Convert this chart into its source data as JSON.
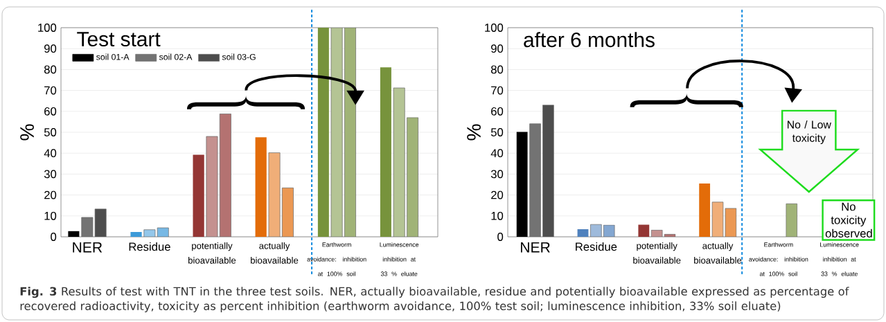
{
  "chart_data": [
    {
      "type": "bar",
      "title": "Test start",
      "ylabel": "%",
      "categories": [
        "NER",
        "Residue",
        "potentially bioavailable",
        "actually bioavailable",
        "Earthworm avoidance: inhibition at 100% soil",
        "Luminescence inhibition at 33 % eluate"
      ],
      "series": [
        {
          "name": "soil 01-A",
          "color": "#000000",
          "colors": [
            "#000000",
            "#3d9ad8",
            "#943634",
            "#e36c09",
            "#77933c",
            "#77933c"
          ],
          "values": [
            2.7,
            2.3,
            39.2,
            47.6,
            100,
            81
          ]
        },
        {
          "name": "soil 02-A",
          "color": "#737373",
          "colors": [
            "#737373",
            "#94c7ea",
            "#c4918f",
            "#f0ae78",
            "#b4c494",
            "#b4c494"
          ],
          "values": [
            9.3,
            3.4,
            48,
            40.2,
            100,
            71.2
          ]
        },
        {
          "name": "soil 03-G",
          "color": "#4d4d4d",
          "colors": [
            "#4d4d4d",
            "#77b8e4",
            "#b47271",
            "#eb9853",
            "#a0b377",
            "#a0b377"
          ],
          "values": [
            13.3,
            4.3,
            58.8,
            23.4,
            100,
            57
          ]
        }
      ],
      "ylim": [
        0,
        100
      ],
      "yticks": [
        0,
        10,
        20,
        30,
        40,
        50,
        60,
        70,
        80,
        90,
        100
      ],
      "grid": "y",
      "legend": "top left",
      "annotations": [
        "**Fig. 3** Results of test with TNT in the three test soils. NER, actually bioavailable, residue and potentially bioavailable expressed as percentage of recovered radioactivity, toxicity as percent inhibition (earthworm avoidance, 100% test soil; luminescence inhibition, 33% soil eluate)"
      ]
    },
    {
      "type": "bar",
      "title": "after 6 months",
      "ylabel": "%",
      "categories": [
        "NER",
        "Residue",
        "potentially bioavailable",
        "actually bioavailable",
        "Earthworm avoidance: inhibition at 100% soil",
        "Luminescence inhibition at 33 % eluate"
      ],
      "series": [
        {
          "colors": [
            "#000000",
            "#4f81bd",
            "#943634",
            "#e36c09",
            "#77933c",
            "#77933c"
          ],
          "values": [
            50.2,
            3.6,
            5.8,
            25.5,
            null,
            null
          ]
        },
        {
          "colors": [
            "#737373",
            "#9ebadb",
            "#c4918f",
            "#f0ae78",
            "#b4c494",
            "#b4c494"
          ],
          "values": [
            54.1,
            5.9,
            3.2,
            16.6,
            null,
            null
          ]
        },
        {
          "colors": [
            "#4d4d4d",
            "#84a7d1",
            "#b47271",
            "#eb9853",
            "#a0b377",
            "#a0b377"
          ],
          "values": [
            63.0,
            5.6,
            1.2,
            13.6,
            15.8,
            null
          ]
        }
      ],
      "ylim": [
        0,
        100
      ],
      "yticks": [
        0,
        10,
        20,
        30,
        40,
        50,
        60,
        70,
        80,
        90,
        100
      ],
      "grid": "y",
      "annotations": [
        "No / Low toxicity",
        "No toxicity observed"
      ]
    }
  ]
}
